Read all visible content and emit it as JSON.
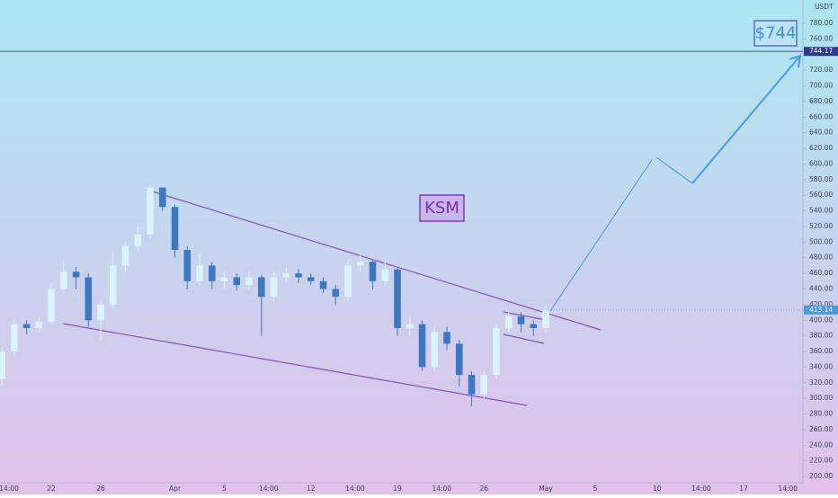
{
  "chart_data": {
    "type": "candlestick",
    "currency": "USDT",
    "annotations": [
      "KSM",
      "$744"
    ],
    "price_line": 744.17,
    "current_price": 413.14,
    "up_color": "#d9f4fb",
    "down_color": "#3d78c2",
    "line_color": "#7a4fc9",
    "x": [
      18,
      19,
      20,
      21,
      22,
      23,
      24,
      25,
      26,
      27,
      28,
      29,
      30,
      31,
      32,
      33,
      34,
      35,
      36,
      37,
      38,
      39,
      40,
      41,
      42,
      43,
      44,
      45,
      46,
      47,
      48,
      49,
      50,
      51,
      52,
      53,
      54,
      55,
      56,
      57,
      58,
      59,
      60,
      61,
      62
    ],
    "open": [
      325,
      360,
      395,
      390,
      398,
      440,
      462,
      455,
      400,
      420,
      470,
      495,
      510,
      570,
      545,
      490,
      450,
      470,
      450,
      455,
      445,
      455,
      430,
      455,
      460,
      455,
      450,
      440,
      430,
      470,
      475,
      450,
      465,
      390,
      395,
      340,
      385,
      370,
      330,
      305,
      330,
      390,
      405,
      395,
      390
    ],
    "close": [
      360,
      395,
      390,
      398,
      440,
      462,
      455,
      400,
      420,
      470,
      495,
      510,
      570,
      545,
      490,
      450,
      470,
      450,
      455,
      445,
      455,
      430,
      455,
      460,
      455,
      450,
      440,
      430,
      470,
      475,
      450,
      465,
      390,
      395,
      340,
      385,
      370,
      330,
      305,
      330,
      390,
      405,
      395,
      390,
      413
    ],
    "high": [
      365,
      402,
      400,
      405,
      448,
      475,
      468,
      460,
      425,
      488,
      500,
      520,
      572,
      568,
      548,
      495,
      485,
      475,
      462,
      460,
      462,
      458,
      462,
      468,
      466,
      460,
      455,
      445,
      478,
      485,
      478,
      475,
      468,
      405,
      400,
      392,
      392,
      375,
      335,
      335,
      395,
      412,
      410,
      400,
      418
    ],
    "low": [
      315,
      355,
      382,
      385,
      392,
      435,
      440,
      392,
      375,
      415,
      462,
      490,
      505,
      540,
      480,
      440,
      445,
      440,
      440,
      438,
      440,
      380,
      425,
      448,
      448,
      445,
      435,
      420,
      425,
      462,
      440,
      445,
      380,
      380,
      335,
      335,
      362,
      315,
      290,
      300,
      325,
      385,
      385,
      380,
      385
    ],
    "xlim": [
      17.85,
      82.8
    ],
    "ylim": [
      192,
      810
    ],
    "xticks": [
      {
        "value": 18.58,
        "label": "14:00"
      },
      22,
      26,
      {
        "value": 32,
        "label": "Apr"
      },
      {
        "value": 36,
        "label": "5"
      },
      {
        "value": 39.58,
        "label": "14:00"
      },
      {
        "value": 43,
        "label": "12"
      },
      {
        "value": 46.58,
        "label": "14:00"
      },
      {
        "value": 50,
        "label": "19"
      },
      {
        "value": 53.58,
        "label": "14:00"
      },
      {
        "value": 57,
        "label": "26"
      },
      {
        "value": 62,
        "label": "May"
      },
      {
        "value": 66,
        "label": "5"
      },
      {
        "value": 71,
        "label": "10"
      },
      {
        "value": 74.58,
        "label": "14:00"
      },
      {
        "value": 78,
        "label": "17"
      },
      {
        "value": 81.58,
        "label": "14:00"
      }
    ],
    "yticks": [
      {
        "value": 200,
        "label": "200.00"
      },
      {
        "value": 220,
        "label": "220.00"
      },
      {
        "value": 240,
        "label": "240.00"
      },
      {
        "value": 260,
        "label": "260.00"
      },
      {
        "value": 280,
        "label": "280.00"
      },
      {
        "value": 300,
        "label": "300.00"
      },
      {
        "value": 320,
        "label": "320.00"
      },
      {
        "value": 340,
        "label": "340.00"
      },
      {
        "value": 360,
        "label": "360.00"
      },
      {
        "value": 380,
        "label": "380.00"
      },
      {
        "value": 400,
        "label": "400.00"
      },
      {
        "value": 420,
        "label": "420.00"
      },
      {
        "value": 440,
        "label": "440.00"
      },
      {
        "value": 460,
        "label": "460.00"
      },
      {
        "value": 480,
        "label": "480.00"
      },
      {
        "value": 500,
        "label": "500.00"
      },
      {
        "value": 520,
        "label": "520.00"
      },
      {
        "value": 540,
        "label": "540.00"
      },
      {
        "value": 560,
        "label": "560.00"
      },
      {
        "value": 580,
        "label": "580.00"
      },
      {
        "value": 600,
        "label": "600.00"
      },
      {
        "value": 620,
        "label": "620.00"
      },
      {
        "value": 640,
        "label": "640.00"
      },
      {
        "value": 660,
        "label": "660.00"
      },
      {
        "value": 680,
        "label": "680.00"
      },
      {
        "value": 700,
        "label": "700.00"
      },
      {
        "value": 720,
        "label": "720.00"
      },
      {
        "value": 760,
        "label": "760.00"
      },
      {
        "value": 780,
        "label": "780.00"
      }
    ]
  }
}
